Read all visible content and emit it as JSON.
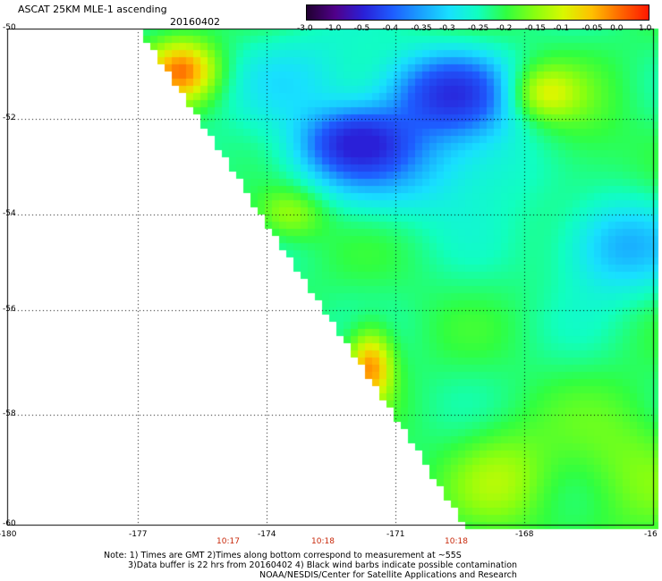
{
  "header": {
    "title": "ASCAT 25KM MLE-1 ascending",
    "date": "20160402"
  },
  "colorbar": {
    "labels": [
      "-3.0",
      "-1.0",
      "-0.5",
      "-0.4",
      "-0.35",
      "-0.3",
      "-0.25",
      "-0.2",
      "-0.15",
      "-0.1",
      "-0.05",
      "0.0",
      "1.0"
    ],
    "colors": [
      "#200030",
      "#50008a",
      "#2a20d8",
      "#1e5cff",
      "#1aa0ff",
      "#18e0ff",
      "#10ffc0",
      "#30ff40",
      "#88ff10",
      "#d8f800",
      "#ffc000",
      "#ff6800",
      "#ff1800"
    ]
  },
  "map": {
    "lat_labels": [
      "-50",
      "-52",
      "-54",
      "-56",
      "-58",
      "-60"
    ],
    "lon_labels": [
      "-180",
      "-177",
      "-174",
      "-171",
      "-168",
      "-16"
    ],
    "time_labels": [
      "10:17",
      "10:18",
      "10:18"
    ],
    "grid": true,
    "field": "wind speed MLE residual",
    "swath_edge": "diagonal, upper-left to lower-center"
  },
  "footer": {
    "note1": "Note: 1) Times are GMT 2)Times along bottom correspond to measurement at ~55S",
    "note2": "3)Data buffer is 22 hrs from 20160402 4) Black wind barbs indicate possible contamination",
    "credit": "NOAA/NESDIS/Center for Satellite Applications and Research"
  }
}
